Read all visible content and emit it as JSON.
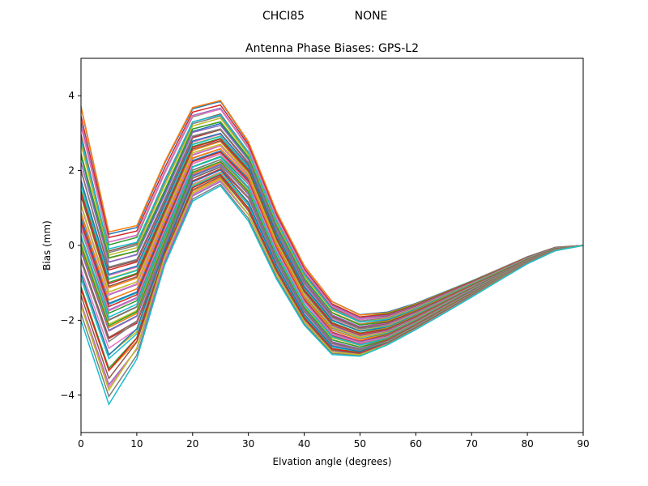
{
  "header": {
    "station": "CHCI85",
    "antenna": "NONE"
  },
  "chart_data": {
    "type": "line",
    "title": "Antenna Phase Biases: GPS-L2",
    "xlabel": "Elvation angle (degrees)",
    "ylabel": "Bias (mm)",
    "xlim": [
      0,
      90
    ],
    "ylim": [
      -5,
      5
    ],
    "xticks": [
      0,
      10,
      20,
      30,
      40,
      50,
      60,
      70,
      80,
      90
    ],
    "yticks": [
      -4,
      -2,
      0,
      2,
      4
    ],
    "grid": false,
    "legend": "none",
    "x": [
      0,
      5,
      10,
      15,
      20,
      25,
      30,
      35,
      40,
      45,
      50,
      55,
      60,
      65,
      70,
      75,
      80,
      85,
      90
    ],
    "colors": [
      "#1f77b4",
      "#ff7f0e",
      "#2ca02c",
      "#d62728",
      "#9467bd",
      "#8c564b",
      "#e377c2",
      "#7f7f7f",
      "#bcbd22",
      "#17becf"
    ],
    "series_count": 60,
    "series": [
      {
        "values": [
          3.7,
          0.3,
          0.48,
          2.2,
          3.65,
          3.85,
          2.75,
          0.9,
          -0.55,
          -1.5,
          -1.85,
          -1.78,
          -1.55,
          -1.25,
          -0.95,
          -0.63,
          -0.3,
          -0.05,
          0.0
        ]
      },
      {
        "values": [
          2.0,
          -0.6,
          -0.4,
          1.2,
          2.9,
          3.1,
          2.2,
          0.4,
          -1.0,
          -1.9,
          -2.2,
          -2.1,
          -1.8,
          -1.45,
          -1.1,
          -0.75,
          -0.4,
          -0.1,
          0.0
        ]
      },
      {
        "values": [
          0.8,
          -1.5,
          -1.2,
          0.6,
          2.3,
          2.55,
          1.8,
          0.0,
          -1.4,
          -2.25,
          -2.5,
          -2.35,
          -2.0,
          -1.6,
          -1.2,
          -0.82,
          -0.43,
          -0.12,
          0.0
        ]
      },
      {
        "values": [
          -0.3,
          -2.4,
          -2.0,
          -0.1,
          1.8,
          2.1,
          1.3,
          -0.4,
          -1.75,
          -2.6,
          -2.78,
          -2.55,
          -2.15,
          -1.72,
          -1.3,
          -0.88,
          -0.46,
          -0.13,
          0.0
        ]
      },
      {
        "values": [
          -1.9,
          -4.15,
          -2.95,
          -0.45,
          1.25,
          1.65,
          0.7,
          -0.85,
          -2.1,
          -2.9,
          -2.95,
          -2.65,
          -2.25,
          -1.82,
          -1.38,
          -0.93,
          -0.49,
          -0.14,
          0.0
        ]
      }
    ]
  }
}
